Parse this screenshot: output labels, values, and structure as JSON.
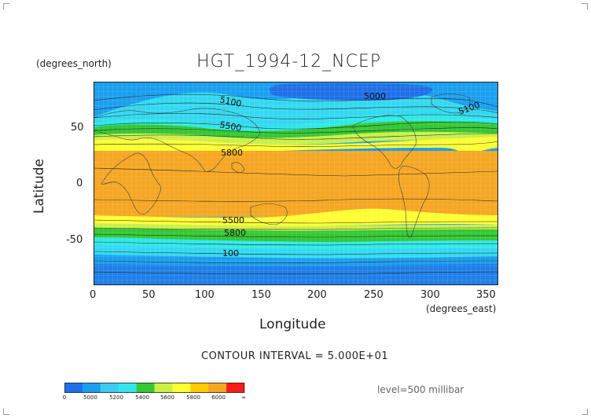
{
  "title": "HGT_1994-12_NCEP",
  "y_unit_label": "(degrees_north)",
  "x_unit_label": "(degrees_east)",
  "x_axis_title": "Longitude",
  "y_axis_title": "Latitude",
  "contour_note": "CONTOUR INTERVAL = 5.000E+01",
  "level_note": "level=500 millibar",
  "chart_data": {
    "type": "heatmap",
    "variable": "HGT",
    "xlim": [
      0,
      360
    ],
    "ylim": [
      -90,
      90
    ],
    "x_ticks": [
      "0",
      "50",
      "100",
      "150",
      "200",
      "250",
      "300",
      "350"
    ],
    "x_tick_values": [
      0,
      50,
      100,
      150,
      200,
      250,
      300,
      350
    ],
    "y_ticks": [
      "50",
      "0",
      "-50"
    ],
    "y_tick_values": [
      50,
      0,
      -50
    ],
    "contour_labels": [
      {
        "text": "5100",
        "lon": 125,
        "lat": 73
      },
      {
        "text": "5000",
        "lon": 253,
        "lat": 77
      },
      {
        "text": "5100",
        "lon": 325,
        "lat": 68
      },
      {
        "text": "5500",
        "lon": 118,
        "lat": 47
      },
      {
        "text": "5800",
        "lon": 130,
        "lat": 28
      },
      {
        "text": "5500",
        "lon": 125,
        "lat": -35
      },
      {
        "text": "5800",
        "lon": 128,
        "lat": -42
      },
      {
        "text": "100",
        "lon": 128,
        "lat": -62
      }
    ],
    "colorbar": {
      "labels": [
        "0",
        "5000",
        "5200",
        "5400",
        "5600",
        "5800",
        "6000",
        "∞"
      ],
      "colors": [
        "#1f6fe8",
        "#1a9fee",
        "#3ccbf5",
        "#33e8e8",
        "#34c834",
        "#c9f045",
        "#ffff33",
        "#ffcc00",
        "#f5a623",
        "#ff1a1a"
      ]
    }
  }
}
